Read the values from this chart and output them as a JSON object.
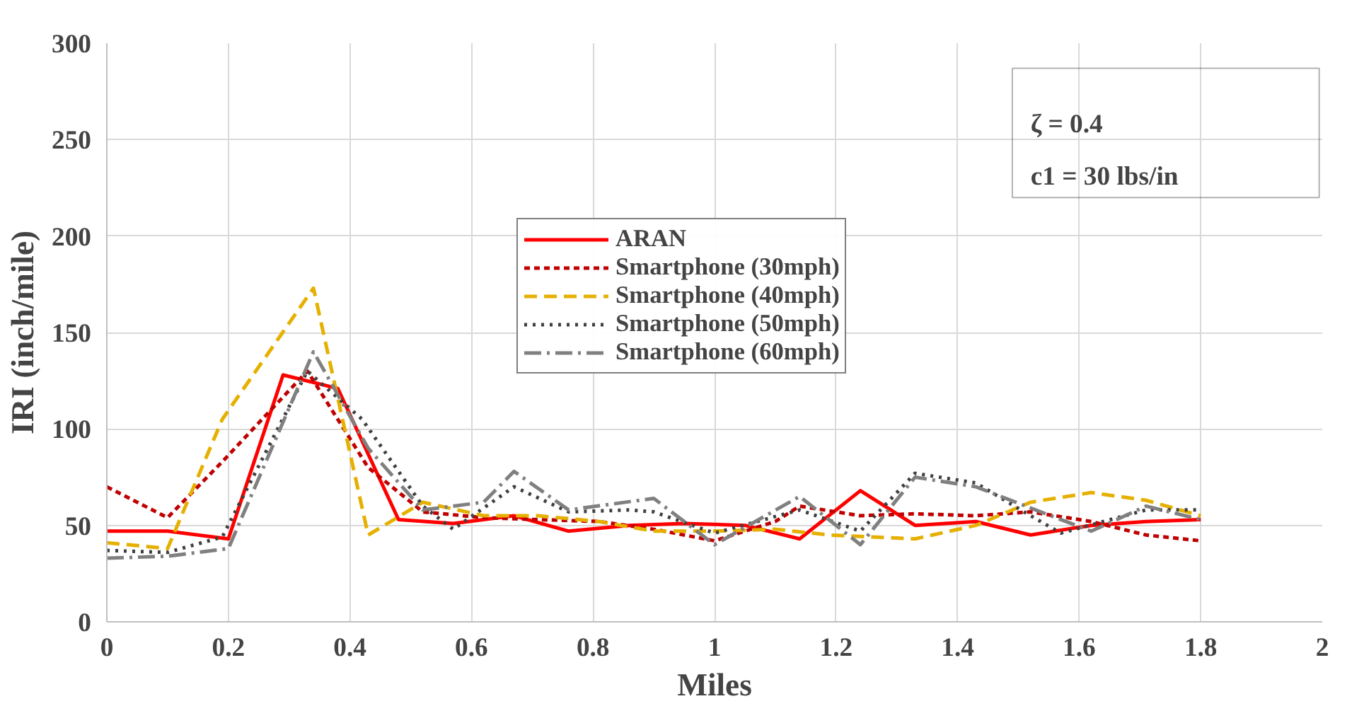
{
  "chart_data": {
    "type": "line",
    "xlabel": "Miles",
    "ylabel": "IRI (inch/mile)",
    "xlim": [
      0,
      2
    ],
    "ylim": [
      0,
      300
    ],
    "xticks": [
      0,
      0.2,
      0.4,
      0.6,
      0.8,
      1,
      1.2,
      1.4,
      1.6,
      1.8,
      2
    ],
    "yticks": [
      0,
      50,
      100,
      150,
      200,
      250,
      300
    ],
    "grid": true,
    "legend": "top",
    "annotations": [
      "ζ = 0.4",
      "c1 = 30 lbs/in"
    ],
    "series": [
      {
        "name": "ARAN",
        "color": "#ff0000",
        "line_style": "solid",
        "x": [
          0,
          0.1,
          0.2,
          0.29,
          0.38,
          0.48,
          0.57,
          0.67,
          0.76,
          0.86,
          0.95,
          1.05,
          1.14,
          1.24,
          1.33,
          1.43,
          1.52,
          1.62,
          1.71,
          1.8
        ],
        "values": [
          47,
          47,
          43,
          128,
          121,
          53,
          51,
          55,
          47,
          50,
          51,
          50,
          43,
          68,
          50,
          52,
          45,
          50,
          52,
          53
        ]
      },
      {
        "name": "Smartphone (30mph)",
        "color": "#c00000",
        "line_style": "dashed",
        "x": [
          0,
          0.1,
          0.19,
          0.33,
          0.43,
          0.52,
          0.62,
          0.71,
          0.81,
          0.9,
          1.0,
          1.1,
          1.14,
          1.24,
          1.33,
          1.43,
          1.52,
          1.62,
          1.71,
          1.8
        ],
        "values": [
          70,
          54,
          83,
          130,
          80,
          57,
          54,
          53,
          52,
          48,
          42,
          52,
          60,
          55,
          56,
          55,
          57,
          52,
          45,
          42
        ]
      },
      {
        "name": "Smartphone (40mph)",
        "color": "#e6b000",
        "line_style": "longdash",
        "x": [
          0,
          0.1,
          0.19,
          0.34,
          0.43,
          0.52,
          0.62,
          0.71,
          0.81,
          0.9,
          1.0,
          1.1,
          1.19,
          1.33,
          1.43,
          1.52,
          1.62,
          1.71,
          1.8
        ],
        "values": [
          41,
          38,
          105,
          173,
          45,
          62,
          55,
          55,
          52,
          47,
          47,
          48,
          45,
          43,
          50,
          62,
          67,
          63,
          55
        ]
      },
      {
        "name": "Smartphone (50mph)",
        "color": "#404040",
        "line_style": "dotted",
        "x": [
          0,
          0.1,
          0.19,
          0.33,
          0.42,
          0.52,
          0.57,
          0.67,
          0.76,
          0.86,
          0.9,
          1.0,
          1.14,
          1.24,
          1.33,
          1.43,
          1.52,
          1.57,
          1.71,
          1.8
        ],
        "values": [
          37,
          36,
          44,
          130,
          105,
          60,
          48,
          70,
          57,
          58,
          57,
          46,
          58,
          47,
          77,
          72,
          55,
          46,
          58,
          58
        ]
      },
      {
        "name": "Smartphone (60mph)",
        "color": "#808080",
        "line_style": "dashdot",
        "x": [
          0,
          0.1,
          0.2,
          0.34,
          0.43,
          0.52,
          0.62,
          0.67,
          0.76,
          0.9,
          1.0,
          1.14,
          1.24,
          1.33,
          1.43,
          1.52,
          1.62,
          1.71,
          1.8
        ],
        "values": [
          33,
          34,
          38,
          140,
          90,
          58,
          62,
          78,
          58,
          64,
          40,
          65,
          40,
          75,
          70,
          59,
          47,
          60,
          53
        ]
      }
    ]
  }
}
